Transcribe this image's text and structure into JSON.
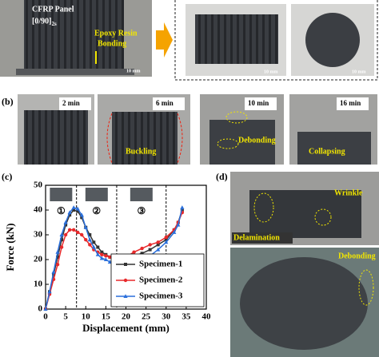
{
  "figure": {
    "panel_a": {
      "panel_text": "CFRP Panel",
      "layup": "[0/90]",
      "layup_sub": "2s",
      "bonding_1": "Epoxy Resin",
      "bonding_2": "Bonding",
      "scale_bars": [
        "10 mm",
        "10 mm",
        "10 mm"
      ]
    },
    "panel_b": {
      "label": "(b)",
      "times": [
        "2 min",
        "6 min",
        "10 min",
        "16 min"
      ],
      "annotations": [
        "Buckling",
        "Debonding",
        "Collapsing"
      ]
    },
    "panel_d": {
      "label": "(d)",
      "annotations": [
        "Wrinkle",
        "Delamination",
        "Debonding"
      ]
    }
  },
  "chart_data": {
    "type": "line",
    "panel_label": "(c)",
    "xlabel": "Displacement (mm)",
    "ylabel": "Force (kN)",
    "x": [
      0,
      1,
      2,
      3,
      4,
      5,
      6,
      7,
      8,
      9,
      10,
      11,
      12,
      13,
      14,
      15,
      16,
      17,
      18,
      20,
      22,
      24,
      26,
      28,
      30,
      32,
      33,
      34
    ],
    "series": [
      {
        "name": "Specimen-1",
        "color": "#333333",
        "marker": "square",
        "values": [
          0,
          7,
          14,
          21,
          28,
          34,
          38,
          40,
          39.5,
          37,
          33,
          30,
          27,
          25,
          23,
          22,
          21,
          20.5,
          20.5,
          21,
          21.5,
          22.5,
          24,
          26,
          28,
          32,
          35,
          40
        ]
      },
      {
        "name": "Specimen-2",
        "color": "#e8292b",
        "marker": "circle",
        "values": [
          0,
          6,
          12,
          18,
          25,
          30,
          32,
          32,
          31,
          30,
          28,
          26,
          24,
          23,
          22,
          21.5,
          21,
          20.8,
          20.5,
          21,
          23,
          24.5,
          26,
          27,
          29,
          32,
          35,
          39
        ]
      },
      {
        "name": "Specimen-3",
        "color": "#2a6fdb",
        "marker": "triangle",
        "values": [
          0,
          7,
          15,
          23,
          30,
          35,
          39,
          41,
          40.5,
          38,
          33,
          28,
          25,
          22,
          20.5,
          20,
          19,
          18.5,
          18,
          18,
          18.5,
          20,
          21.5,
          24,
          27,
          31,
          34,
          41
        ]
      }
    ],
    "xlim": [
      0,
      40
    ],
    "xticks": [
      0,
      5,
      10,
      15,
      20,
      25,
      30,
      35,
      40
    ],
    "ylim": [
      0,
      50
    ],
    "yticks": [
      0,
      10,
      20,
      30,
      40,
      50
    ],
    "stage_boundaries": [
      7.7,
      17.7,
      30
    ],
    "stage_labels": [
      "①",
      "②",
      "③"
    ],
    "legend": "lower right"
  }
}
